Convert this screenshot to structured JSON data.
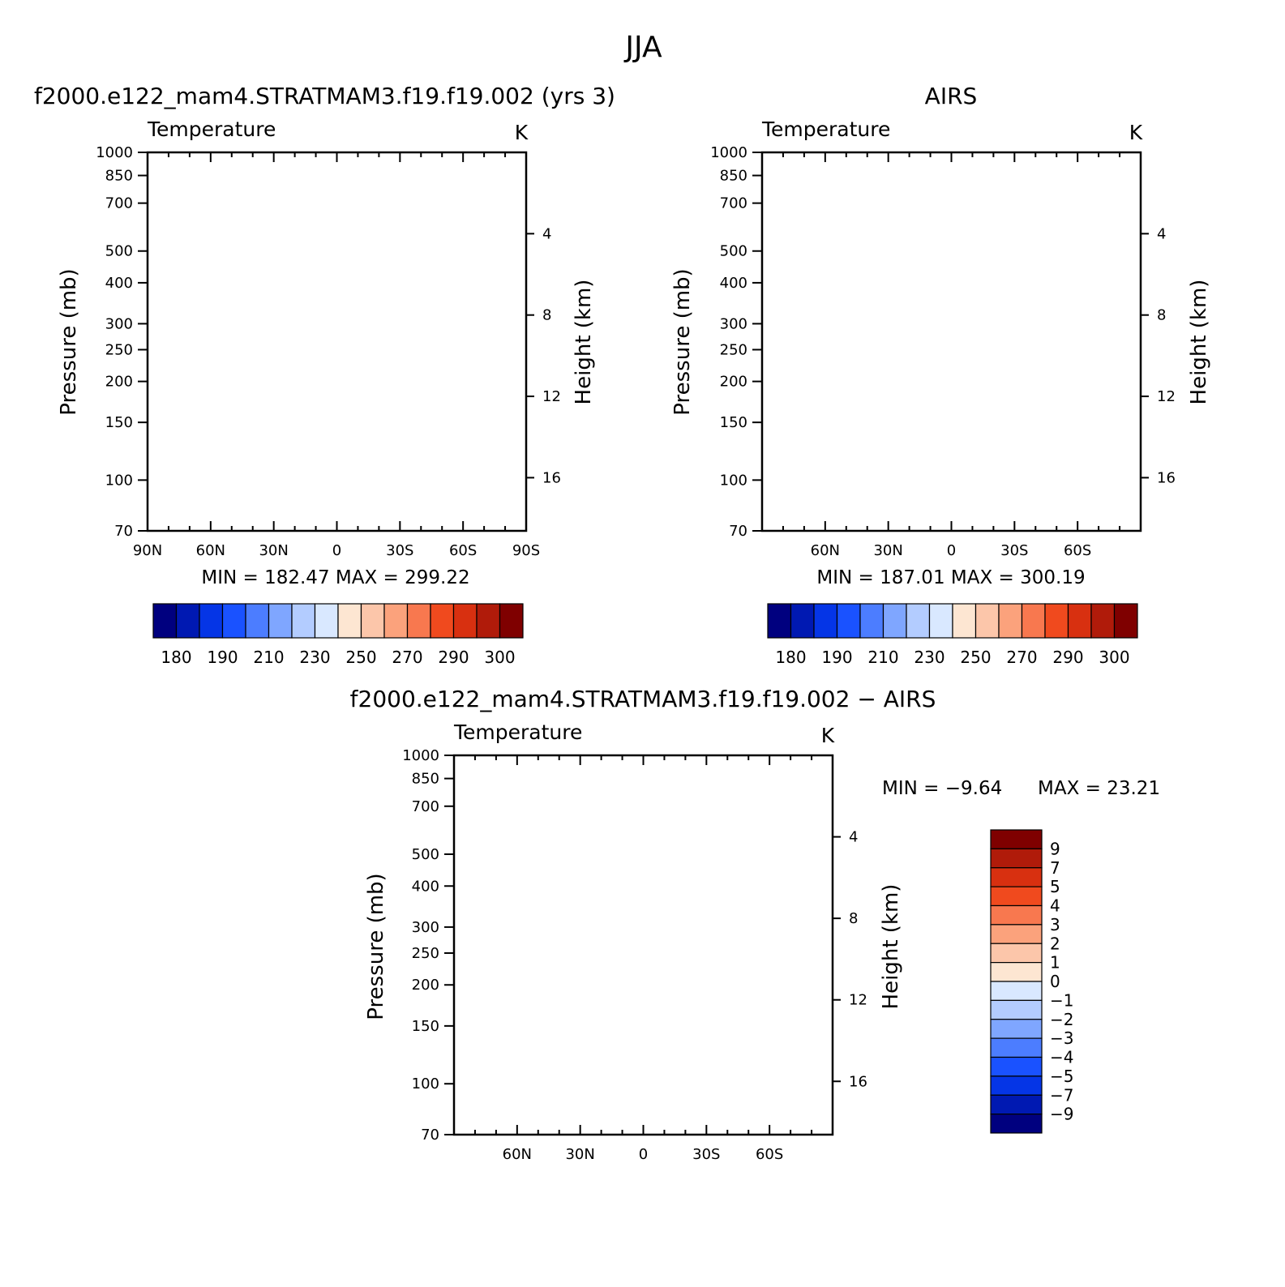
{
  "figure_title": "JJA",
  "chart_data": [
    {
      "type": "heatmap",
      "panel_title": "f2000.e122_mam4.STRATMAM3.f19.f19.002 (yrs 3)",
      "variable_label": "Temperature",
      "units": "K",
      "ylabel": "Pressure (mb)",
      "ylabel_right": "Height (km)",
      "y_scale": "log",
      "ylim": [
        1000,
        70
      ],
      "xlim": [
        90,
        -90
      ],
      "x_ticks": [
        90,
        60,
        30,
        0,
        -30,
        -60,
        -90
      ],
      "x_tick_labels": [
        "90N",
        "60N",
        "30N",
        "0",
        "30S",
        "60S",
        "90S"
      ],
      "y_ticks": [
        70,
        100,
        150,
        200,
        250,
        300,
        400,
        500,
        700,
        850,
        1000
      ],
      "y_tick_labels": [
        "70",
        "100",
        "150",
        "200",
        "250",
        "300",
        "400",
        "500",
        "700",
        "850",
        "1000"
      ],
      "height_ticks": [
        4,
        8,
        12,
        16
      ],
      "height_tick_labels": [
        "4",
        "8",
        "12",
        "16"
      ],
      "stats_text": "MIN = 182.47 MAX = 299.22",
      "min": 182.47,
      "max": 299.22,
      "colorbar_levels": [
        180,
        185,
        190,
        200,
        210,
        220,
        230,
        240,
        250,
        260,
        270,
        280,
        290,
        295,
        300
      ],
      "colorbar_labels": [
        "180",
        "190",
        "210",
        "230",
        "250",
        "270",
        "290",
        "300"
      ]
    },
    {
      "type": "heatmap",
      "panel_title": "AIRS",
      "variable_label": "Temperature",
      "units": "K",
      "ylabel": "Pressure (mb)",
      "ylabel_right": "Height (km)",
      "y_scale": "log",
      "ylim": [
        1000,
        70
      ],
      "xlim": [
        90,
        -90
      ],
      "x_ticks": [
        60,
        30,
        0,
        -30,
        -60
      ],
      "x_tick_labels": [
        "60N",
        "30N",
        "0",
        "30S",
        "60S"
      ],
      "y_ticks": [
        70,
        100,
        150,
        200,
        250,
        300,
        400,
        500,
        700,
        850,
        1000
      ],
      "y_tick_labels": [
        "70",
        "100",
        "150",
        "200",
        "250",
        "300",
        "400",
        "500",
        "700",
        "850",
        "1000"
      ],
      "height_ticks": [
        4,
        8,
        12,
        16
      ],
      "height_tick_labels": [
        "4",
        "8",
        "12",
        "16"
      ],
      "stats_text": "MIN = 187.01 MAX = 300.19",
      "min": 187.01,
      "max": 300.19,
      "colorbar_levels": [
        180,
        185,
        190,
        200,
        210,
        220,
        230,
        240,
        250,
        260,
        270,
        280,
        290,
        295,
        300
      ],
      "colorbar_labels": [
        "180",
        "190",
        "210",
        "230",
        "250",
        "270",
        "290",
        "300"
      ]
    },
    {
      "type": "heatmap",
      "panel_title": "f2000.e122_mam4.STRATMAM3.f19.f19.002 − AIRS",
      "variable_label": "Temperature",
      "units": "K",
      "ylabel": "Pressure (mb)",
      "ylabel_right": "Height (km)",
      "y_scale": "log",
      "ylim": [
        1000,
        70
      ],
      "xlim": [
        90,
        -90
      ],
      "x_ticks": [
        60,
        30,
        0,
        -30,
        -60
      ],
      "x_tick_labels": [
        "60N",
        "30N",
        "0",
        "30S",
        "60S"
      ],
      "y_ticks": [
        70,
        100,
        150,
        200,
        250,
        300,
        400,
        500,
        700,
        850,
        1000
      ],
      "y_tick_labels": [
        "70",
        "100",
        "150",
        "200",
        "250",
        "300",
        "400",
        "500",
        "700",
        "850",
        "1000"
      ],
      "height_ticks": [
        4,
        8,
        12,
        16
      ],
      "height_tick_labels": [
        "4",
        "8",
        "12",
        "16"
      ],
      "stats_min_text": "MIN = −9.64",
      "stats_max_text": "MAX = 23.21",
      "min": -9.64,
      "max": 23.21,
      "colorbar_levels": [
        -9,
        -7,
        -5,
        -4,
        -3,
        -2,
        -1,
        0,
        1,
        2,
        3,
        4,
        5,
        7,
        9
      ],
      "colorbar_labels": [
        "9",
        "7",
        "5",
        "4",
        "3",
        "2",
        "1",
        "0",
        "−1",
        "−2",
        "−3",
        "−4",
        "−5",
        "−7",
        "−9"
      ]
    }
  ],
  "palette": [
    "#00007f",
    "#0019b2",
    "#0535e6",
    "#1a52ff",
    "#4c7dff",
    "#7fa6ff",
    "#b3ccff",
    "#d9e8ff",
    "#fde6d2",
    "#fcc6aa",
    "#fba27c",
    "#f8784f",
    "#f04a1e",
    "#d83010",
    "#b01b0a",
    "#7f0000"
  ]
}
